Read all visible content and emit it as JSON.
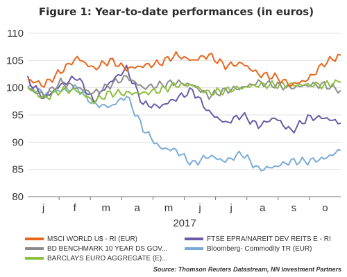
{
  "chart_data": {
    "type": "line",
    "title": "Figure 1: Year-to-date performances (in euros)",
    "xlabel": "2017",
    "ylabel": "",
    "ylim": [
      80,
      110
    ],
    "yticks": [
      80,
      85,
      90,
      95,
      100,
      105,
      110
    ],
    "x_tick_labels": [
      "j",
      "f",
      "m",
      "a",
      "m",
      "j",
      "j",
      "a",
      "s",
      "o"
    ],
    "x": [
      "Jan",
      "Jan",
      "Feb",
      "Feb",
      "Mar",
      "Mar",
      "Apr",
      "Apr",
      "May",
      "May",
      "Jun",
      "Jun",
      "Jul",
      "Jul",
      "Aug",
      "Aug",
      "Sep",
      "Sep",
      "Oct",
      "Oct"
    ],
    "grid": "horizontal",
    "legend_position": "bottom",
    "series": [
      {
        "name": "MSCI WORLD U$ - RI (EUR)",
        "color": "#e8651a",
        "values": [
          101.5,
          100.5,
          103,
          105.5,
          103.5,
          105,
          103.5,
          104,
          104.5,
          106,
          105,
          106,
          104,
          104.5,
          102.5,
          102,
          100.5,
          101.5,
          104.5,
          106
        ]
      },
      {
        "name": "FTSE EPRA/NAREIT DEV REITS E - RI",
        "color": "#6a5aa8",
        "values": [
          101.5,
          98,
          100.5,
          102,
          97.5,
          101,
          103.5,
          97,
          96.5,
          98,
          99.5,
          95.5,
          93.5,
          95,
          93,
          94.5,
          92,
          94.5,
          94.5,
          93.5
        ]
      },
      {
        "name": "BD BENCHMARK 10 YEAR DS GOV...",
        "color": "#8c8c8c",
        "values": [
          100,
          98.5,
          101,
          100,
          99,
          100.5,
          102,
          100,
          100.5,
          101,
          100.5,
          98.5,
          99.5,
          100,
          101,
          100.5,
          100,
          100.5,
          100.5,
          99.5
        ]
      },
      {
        "name": "Bloomberg- Commodity TR (EUR)",
        "color": "#7aabd8",
        "values": [
          100,
          99,
          99.5,
          100,
          97,
          96.5,
          98.5,
          92.5,
          89,
          88.5,
          86,
          87.5,
          86.5,
          88,
          85,
          85.5,
          86.5,
          86.5,
          87,
          88.5
        ]
      },
      {
        "name": "BARCLAYS EURO AGGREGATE (E)...",
        "color": "#8bbf3c",
        "values": [
          100,
          98,
          99.5,
          99.5,
          97.5,
          99,
          99,
          99,
          99.5,
          100.5,
          100.5,
          99,
          99.5,
          100,
          100.5,
          100.5,
          100.5,
          100.5,
          100.5,
          101
        ]
      }
    ],
    "source": "Source: Thomson Reuters Datastream, NN Investment Partners"
  }
}
